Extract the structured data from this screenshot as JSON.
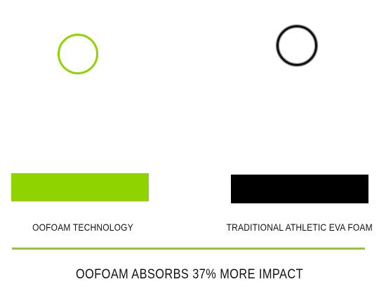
{
  "colors": {
    "accent_green": "#8fd400",
    "black": "#000000"
  },
  "comparison": {
    "left": {
      "label": "OOFOAM TECHNOLOGY",
      "icon": "circle-outline-icon"
    },
    "right": {
      "label": "TRADITIONAL ATHLETIC EVA FOAM",
      "icon": "circle-outline-icon"
    }
  },
  "headline": "OOFOAM ABSORBS 37% MORE IMPACT"
}
